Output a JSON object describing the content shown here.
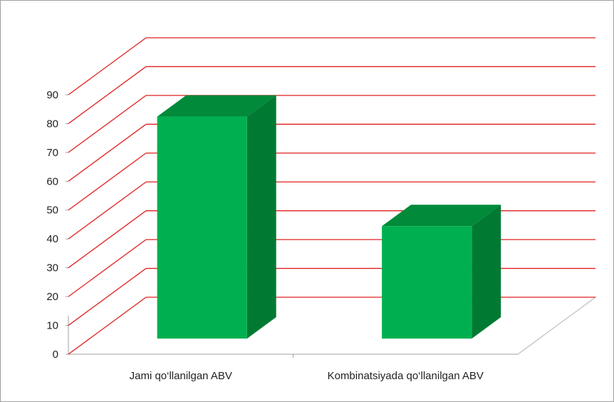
{
  "chart_data": {
    "type": "bar3d",
    "categories": [
      "Jami qo‘llanilgan ABV",
      "Kombinatsiyada qo‘llanilgan ABV"
    ],
    "values": [
      77,
      39
    ],
    "color": "#00b050",
    "ylim": [
      0,
      90
    ],
    "yticks": [
      0,
      10,
      20,
      30,
      40,
      50,
      60,
      70,
      80,
      90
    ],
    "grid": true,
    "grid_color": "#e02020"
  }
}
